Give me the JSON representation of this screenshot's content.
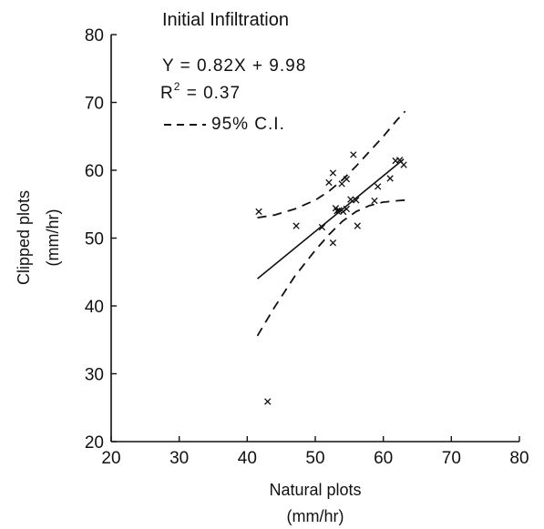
{
  "chart_data": {
    "type": "scatter",
    "title": "Initial Infiltration",
    "xlabel": [
      "Natural plots",
      "(mm/hr)"
    ],
    "ylabel": [
      "Clipped plots",
      "(mm/hr)"
    ],
    "xlim": [
      20,
      80
    ],
    "ylim": [
      20,
      80
    ],
    "xticks": [
      "20",
      "30",
      "40",
      "50",
      "60",
      "70",
      "80"
    ],
    "yticks": [
      "20",
      "30",
      "40",
      "50",
      "60",
      "70",
      "80"
    ],
    "grid": false,
    "legend": "top-left",
    "annotations": {
      "equation": "Y = 0.82X + 9.98",
      "r2_prefix": "R",
      "r2_sup": "2",
      "r2_suffix": " = 0.37",
      "ci_label": "95% C.I."
    },
    "points": {
      "marker": "x",
      "x": [
        41.7,
        47.2,
        51.0,
        52.0,
        52.6,
        52.6,
        53.0,
        53.2,
        53.5,
        53.9,
        54.1,
        54.6,
        54.6,
        55.2,
        55.6,
        56.0,
        56.2,
        58.7,
        59.2,
        61.0,
        61.8,
        62.4,
        63.0,
        43.0
      ],
      "y": [
        53.9,
        51.8,
        51.6,
        58.2,
        59.6,
        49.3,
        54.4,
        54.0,
        54.1,
        58.0,
        53.9,
        54.3,
        58.7,
        55.7,
        62.3,
        55.6,
        51.8,
        55.5,
        57.6,
        58.8,
        61.4,
        61.5,
        60.8,
        25.9
      ]
    },
    "regression": {
      "slope": 0.82,
      "intercept": 9.98,
      "x_range": [
        41.5,
        63.0
      ]
    },
    "ci_upper": {
      "x": [
        41.5,
        44,
        47,
        50,
        52,
        54,
        56,
        58,
        60,
        62,
        63.2
      ],
      "y": [
        53.0,
        53.4,
        54.3,
        55.6,
        56.9,
        58.6,
        60.6,
        62.8,
        65.0,
        67.4,
        68.7
      ]
    },
    "ci_lower": {
      "x": [
        41.5,
        44,
        47,
        50,
        52,
        54,
        56,
        58,
        60,
        62,
        63.2
      ],
      "y": [
        35.6,
        39.8,
        44.4,
        48.2,
        50.5,
        52.5,
        53.9,
        54.8,
        55.3,
        55.5,
        55.6
      ]
    }
  }
}
